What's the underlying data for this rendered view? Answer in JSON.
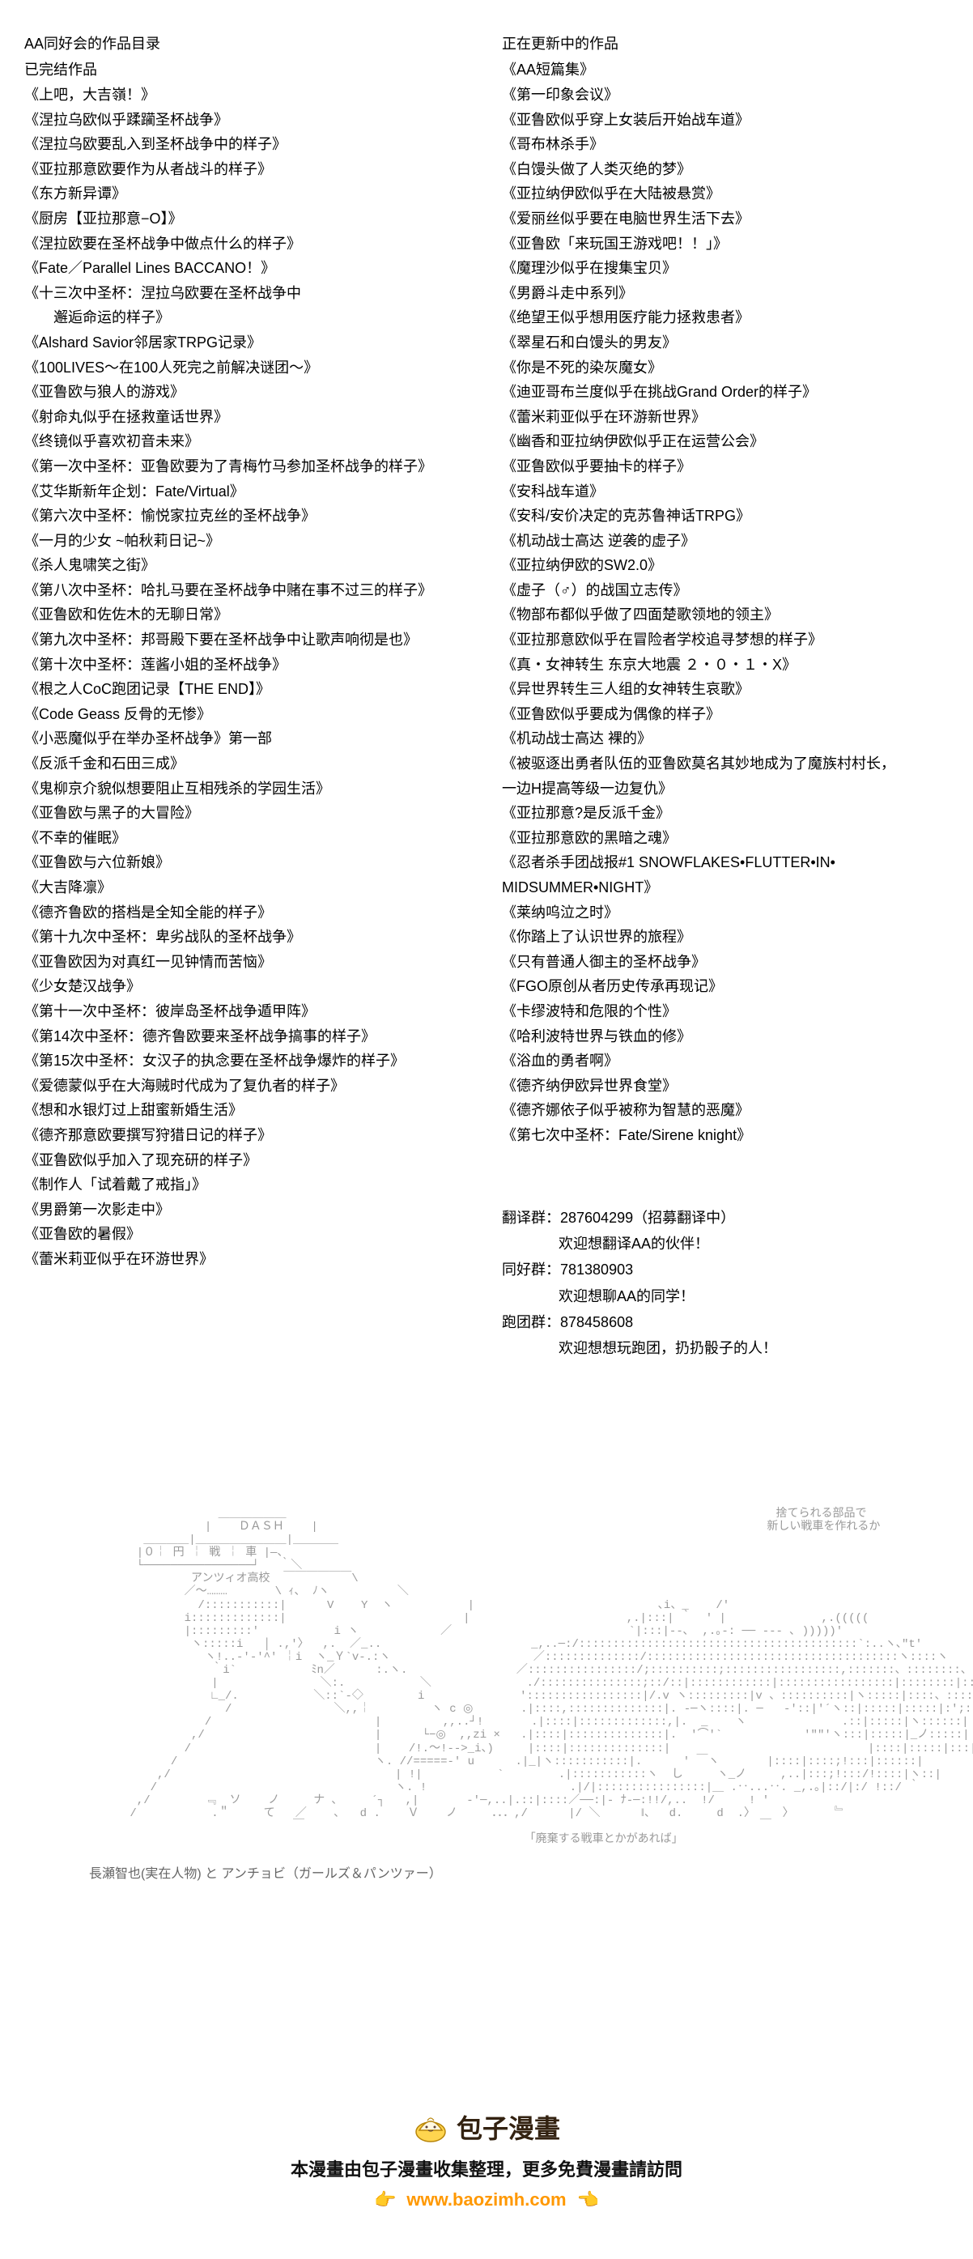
{
  "leftColumn": {
    "mainTitle": "AA同好会的作品目录",
    "subTitle": "已完结作品",
    "works": [
      "《上吧，大吉嶺！》",
      "《涅拉乌欧似乎蹂躏圣杯战争》",
      "《涅拉乌欧要乱入到圣杯战争中的样子》",
      "《亚拉那意欧要作为从者战斗的样子》",
      "《东方新异谭》",
      "《厨房【亚拉那意−O】》",
      "《涅拉欧要在圣杯战争中做点什么的样子》",
      "《Fate／Parallel Lines BACCANO！》",
      "《十三次中圣杯：涅拉乌欧要在圣杯战争中",
      "　　邂逅命运的样子》",
      "《Alshard Savior邻居家TRPG记录》",
      "《100LIVES～在100人死完之前解决谜团～》",
      "《亚鲁欧与狼人的游戏》",
      "《射命丸似乎在拯救童话世界》",
      "《终镜似乎喜欢初音未来》",
      "《第一次中圣杯：亚鲁欧要为了青梅竹马参加圣杯战争的样子》",
      "《艾华斯新年企划：Fate/Virtual》",
      "《第六次中圣杯：愉悦家拉克丝的圣杯战争》",
      "《一月的少女 ~帕秋莉日记~》",
      "《杀人鬼啸笑之街》",
      "《第八次中圣杯：哈扎马要在圣杯战争中赌在事不过三的样子》",
      "《亚鲁欧和佐佐木的无聊日常》",
      "《第九次中圣杯：邦哥殿下要在圣杯战争中让歌声响彻是也》",
      "《第十次中圣杯：莲酱小姐的圣杯战争》",
      "《根之人CoC跑团记录【THE END】》",
      "《Code Geass 反骨的无惨》",
      "《小恶魔似乎在举办圣杯战争》第一部",
      "《反派千金和石田三成》",
      "《鬼柳京介貌似想要阻止互相残杀的学园生活》",
      "《亚鲁欧与黑子的大冒险》",
      "《不幸的催眠》",
      "《亚鲁欧与六位新娘》",
      "《大吉降凛》",
      "《德齐鲁欧的搭档是全知全能的样子》",
      "《第十九次中圣杯：卑劣战队的圣杯战争》",
      "《亚鲁欧因为对真红一见钟情而苦恼》",
      "《少女楚汉战争》",
      "《第十一次中圣杯：彼岸岛圣杯战争遁甲阵》",
      "《第14次中圣杯：德齐鲁欧要来圣杯战争搞事的样子》",
      "《第15次中圣杯：女汉子的执念要在圣杯战争爆炸的样子》",
      "《爱德蒙似乎在大海贼时代成为了复仇者的样子》",
      "《想和水银灯过上甜蜜新婚生活》",
      "《德齐那意欧要撰写狩猎日记的样子》",
      "《亚鲁欧似乎加入了现充研的样子》",
      "《制作人「试着戴了戒指」》",
      "《男爵第一次影走中》",
      "《亚鲁欧的暑假》",
      "《蕾米莉亚似乎在环游世界》"
    ]
  },
  "rightColumn": {
    "mainTitle": "正在更新中的作品",
    "subTitle": "《AA短篇集》",
    "works": [
      "《第一印象会议》",
      "《亚鲁欧似乎穿上女装后开始战车道》",
      "《哥布林杀手》",
      "《白馒头做了人类灭绝的梦》",
      "《亚拉纳伊欧似乎在大陆被悬赏》",
      "《爱丽丝似乎要在电脑世界生活下去》",
      "《亚鲁欧「来玩国王游戏吧！！」》",
      "《魔理沙似乎在搜集宝贝》",
      "《男爵斗走中系列》",
      "《绝望王似乎想用医疗能力拯救患者》",
      "《翠星石和白馒头的男友》",
      "《你是不死的染灰魔女》",
      "《迪亚哥布兰度似乎在挑战Grand Order的样子》",
      "《蕾米莉亚似乎在环游新世界》",
      "《幽香和亚拉纳伊欧似乎正在运营公会》",
      "《亚鲁欧似乎要抽卡的样子》",
      "《安科战车道》",
      "《安科/安价决定的克苏鲁神话TRPG》",
      "《机动战士高达 逆袭的虚子》",
      "《亚拉纳伊欧的SW2.0》",
      "《虚子（♂）的战国立志传》",
      "《物部布都似乎做了四面楚歌领地的领主》",
      "《亚拉那意欧似乎在冒险者学校追寻梦想的样子》",
      "《真・女神转生 东京大地震 ２・０・１・X》",
      "《异世界转生三人组的女神转生哀歌》",
      "《亚鲁欧似乎要成为偶像的样子》",
      "《机动战士高达 裸的》",
      "《被驱逐出勇者队伍的亚鲁欧莫名其妙地成为了魔族村村长，",
      "一边H提高等级一边复仇》",
      "《亚拉那意?是反派千金》",
      "《亚拉那意欧的黑暗之魂》",
      "《忍者杀手团战报#1 SNOWFLAKES•FLUTTER•IN•",
      "MIDSUMMER•NIGHT》",
      "《莱纳呜泣之时》",
      "《你踏上了认识世界的旅程》",
      "《只有普通人御主的圣杯战争》",
      "《FGO原创从者历史传承再现记》",
      "《卡缪波特和危限的个性》",
      "《哈利波特世界与铁血的修》",
      "《浴血的勇者啊》",
      "《德齐纳伊欧异世界食堂》",
      "《德齐娜依子似乎被称为智慧的恶魔》",
      "《第七次中圣杯：Fate/Sirene knight》"
    ]
  },
  "groups": {
    "g1_label": "翻译群：287604299（招募翻译中）",
    "g1_note": "欢迎想翻译AA的伙伴！",
    "g2_label": "同好群：781380903",
    "g2_note": "欢迎想聊AA的同学！",
    "g3_label": "跑团群：878458608",
    "g3_note": "欢迎想想玩跑团，扔扔骰子的人！"
  },
  "ascii": {
    "art": "                   ＿＿＿＿＿＿                                                                        捨てられる部品で\n                 |    ＤＡＳＨ    |                                                                  新しい戦車を作れるか\n        ＿＿＿＿|＿＿＿＿＿＿＿＿|＿＿＿＿\n       |０￤ 円 ￤ 戦 ￤ 車 |—、\n       └────────────────┘   ｀＼\n               アンツィオ高校  ￣￣￣￣￣￣\\\n              ／～………       \\ ｨ、 ﾉヽ          ＼\n                /:::::::::::|      V    Y  ヽ           |                           ､i、_    /'\n              i:::::::::::::|                          |                       ,.|:::| ｀  ' |              ,.(((((\n              |:::::::::'           i ヽ            ／                          `|:::|‐-､  ,.｡-: ── ‐‐- ､ )))))'\n               ヽ:::::i   │ .,'〉  ,.  ／_..                      _,..─:/:::::::::::::::::::::::::::::::::::::::::`:..ヽ､\"t'\n                 ヽ!..-'-'^' ￤i  ヽ_Ｙ`v-.:ヽ                     ／::::::::::::::/:::::::::::::::::::::::::::::::::::::ヽ::::ヽ\n                  ｀i`           ﾐn／      :.ヽ.                ／::::::::::::::::/;::::::::::;:::::::::::::::::,:::::::、::::::::、:::::、\n                  |               ＼:.           ＼              ./:::::::::::::::;::/::|::::::::::::|:::::::::::::::::|::::::::|:::::::::::|:::::::.\n                  ∟_/.           ＼::`-◇        i              ':::::::::::::::::|/.v ヽ:::::::::|v 、::::::::::|ヽ:::::|::::、::::|;::::::::.\n                    /               ＼,,￤         ヽ c ◎       .|::::,::::::::::::::|. -─ヽ::::|. ─   -'::|'´ヽ::|:::::|:::::|:';::::::::\n                 /                        |         ,,..┘!       .|::::|:::::::::::::,|.  _    ヽ              .::|:::::|ヽ::::::|\n               ,/                         |      └−◎  ,,zi ×   .|::::|::::::::::::::|.  '⌒'`            '\"\"'ヽ:::|:::::|_ノ:::::|\n              /                           |    /!.〜!-->_i、)     |::::|::::::::::::::|                             |::::|:::::|:::|::::::|\n            /                             ヽ. //=====‐' u      .|_|ヽ:::::::::::|.      ' ￣ヽ       |::::|::::;!:::|::::::|\n          ,/                                 | !|           `        .|:::::::::::ヽ  し     ヽ_ノ     ,..|:::;!:::/!::::|ヽ::|\n         /                                   ヽ. !                     .|/|::::::::::::::::|＿ .‥...‥. _,.｡|::/|:/ !::/ ｀\n       ,/        ﹃  ソ    ノ     ナ ､     ´┐   ,|       -'─,..|.::|::::／──:|- ﾅ-─:!!/,..  !/     ! '\n      /           .＂     て   ／    ､   d .    Ｖ    ノ     ．．．,/      |/ ＼      ‖、  d.     d  .〉    〉      ﹄\n                              ￣                                                                   ￣\n                                                                「廃棄する戦車とかがあれば」",
    "caption": "長瀬智也(実在人物) と  アンチョビ（ガールズ＆パンツァー）"
  },
  "footer": {
    "brand": "包子漫畫",
    "text": "本漫畫由包子漫畫收集整理，更多免費漫畫請訪問",
    "link": "www.baozimh.com",
    "colors": {
      "brand": "#332211",
      "link": "#ff9800",
      "point": "#ffb300"
    }
  }
}
